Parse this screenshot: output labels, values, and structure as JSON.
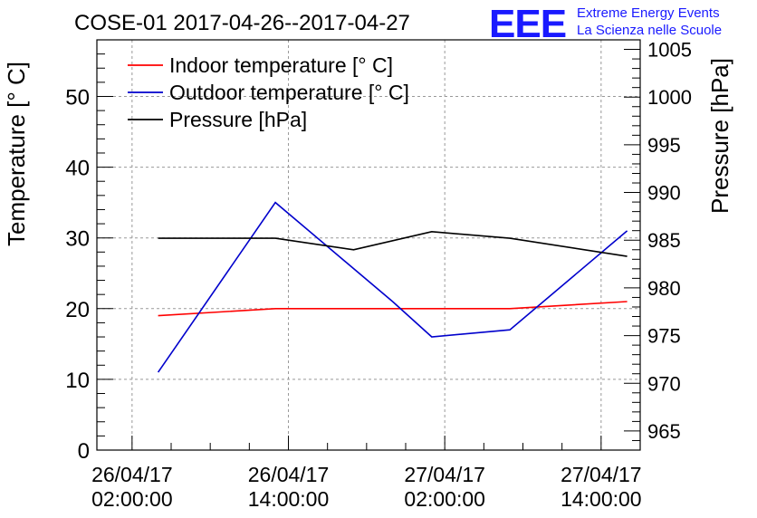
{
  "title": "COSE-01 2017-04-26--2017-04-27",
  "brand": {
    "logo_text": "EEE",
    "line1": "Extreme Energy Events",
    "line2": "La Scienza nelle Scuole",
    "color": "#1a1aff"
  },
  "chart_data": {
    "type": "line",
    "title": "COSE-01 2017-04-26--2017-04-27",
    "ylabel": "Temperature [° C]",
    "y2label": "Pressure [hPa]",
    "ylim": [
      0,
      58
    ],
    "y2lim": [
      963,
      1006
    ],
    "yticks": [
      0,
      10,
      20,
      30,
      40,
      50
    ],
    "y2ticks": [
      965,
      970,
      975,
      980,
      985,
      990,
      995,
      1000,
      1005
    ],
    "xlim": [
      "2017-04-25 23:18",
      "2017-04-27 17:00"
    ],
    "xticks": [
      {
        "at": "2017-04-26 02:00",
        "label1": "26/04/17",
        "label2": "02:00:00"
      },
      {
        "at": "2017-04-26 14:00",
        "label1": "26/04/17",
        "label2": "14:00:00"
      },
      {
        "at": "2017-04-27 02:00",
        "label1": "27/04/17",
        "label2": "02:00:00"
      },
      {
        "at": "2017-04-27 14:00",
        "label1": "27/04/17",
        "label2": "14:00:00"
      }
    ],
    "grid": true,
    "legend_position": "top-left",
    "series": [
      {
        "name": "Indoor temperature [° C]",
        "color": "#ff0000",
        "axis": "left",
        "x": [
          "2017-04-26 04:00",
          "2017-04-26 13:00",
          "2017-04-26 22:00",
          "2017-04-27 07:00",
          "2017-04-27 16:00"
        ],
        "values": [
          19,
          20,
          20,
          20,
          21
        ]
      },
      {
        "name": "Outdoor temperature [° C]",
        "color": "#0000cc",
        "axis": "left",
        "x": [
          "2017-04-26 04:00",
          "2017-04-26 13:00",
          "2017-04-26 22:00",
          "2017-04-27 01:00",
          "2017-04-27 07:00",
          "2017-04-27 16:00"
        ],
        "values": [
          11,
          35,
          21,
          16,
          17,
          31
        ]
      },
      {
        "name": "Pressure [hPa]",
        "color": "#000000",
        "axis": "right",
        "x": [
          "2017-04-26 04:00",
          "2017-04-26 13:00",
          "2017-04-26 19:00",
          "2017-04-27 01:00",
          "2017-04-27 07:00",
          "2017-04-27 16:00"
        ],
        "values": [
          985.2,
          985.2,
          984.0,
          985.9,
          985.2,
          983.3
        ]
      }
    ]
  }
}
